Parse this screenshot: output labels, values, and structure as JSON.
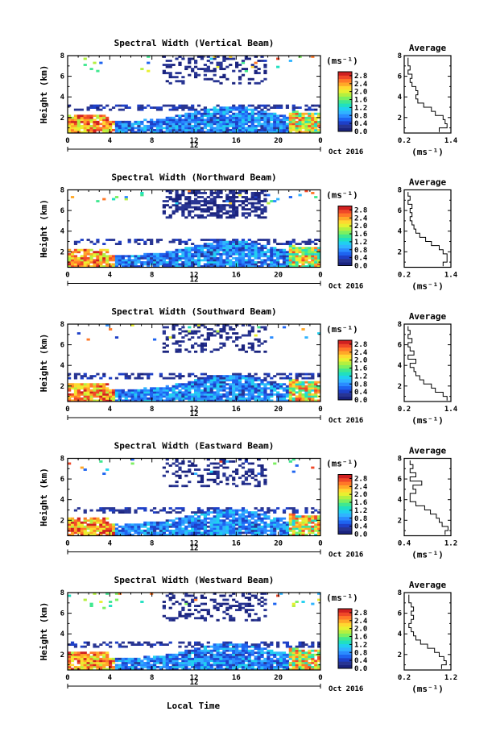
{
  "figure": {
    "xlabel": "Local Time",
    "date_label": "Oct 2016",
    "day_marker": "12",
    "colorbar_unit": "(ms⁻¹)",
    "avg_title": "Average",
    "avg_xunit": "(ms⁻¹)"
  },
  "chart_data": [
    {
      "type": "heatmap",
      "title": "Spectral Width (Vertical Beam)",
      "ylabel": "Height (km)",
      "x_ticks": [
        "0",
        "4",
        "8",
        "12",
        "16",
        "20",
        "0"
      ],
      "xlim": [
        0,
        24
      ],
      "y_ticks": [
        "2",
        "4",
        "6",
        "8"
      ],
      "ylim": [
        0.5,
        8
      ],
      "colorbar": {
        "ticks": [
          "0.0",
          "0.4",
          "0.8",
          "1.2",
          "1.6",
          "2.0",
          "2.4",
          "2.8"
        ],
        "range": [
          0,
          3.0
        ]
      },
      "colors": [
        "#1a237e",
        "#283593",
        "#1e40c8",
        "#1e64f0",
        "#2a8cff",
        "#30b4ff",
        "#20d0f0",
        "#20e0c0",
        "#40e890",
        "#7cf060",
        "#b4f040",
        "#e8f030",
        "#ffd830",
        "#ffa828",
        "#ff7828",
        "#f04828",
        "#d02020"
      ],
      "profile": {
        "xlim": [
          0.2,
          1.4
        ],
        "x_ticks": [
          "0.2",
          "1.4"
        ],
        "y_ticks": [
          "2",
          "4",
          "6",
          "8"
        ],
        "ylim": [
          0.5,
          8
        ],
        "heights": [
          0.8,
          1.2,
          1.6,
          2.0,
          2.4,
          2.8,
          3.2,
          3.6,
          4.0,
          4.4,
          4.8,
          5.2,
          5.6,
          6.0,
          6.4,
          6.8,
          7.2,
          7.6
        ],
        "values": [
          1.1,
          1.3,
          1.25,
          1.2,
          1.0,
          0.9,
          0.7,
          0.55,
          0.5,
          0.55,
          0.5,
          0.4,
          0.35,
          0.4,
          0.3,
          0.35,
          0.3,
          0.3
        ]
      }
    },
    {
      "type": "heatmap",
      "title": "Spectral Width (Northward Beam)",
      "ylabel": "Height (km)",
      "x_ticks": [
        "0",
        "4",
        "8",
        "12",
        "16",
        "20",
        "0"
      ],
      "xlim": [
        0,
        24
      ],
      "y_ticks": [
        "2",
        "4",
        "6",
        "8"
      ],
      "ylim": [
        0.5,
        8
      ],
      "colorbar": {
        "ticks": [
          "0.0",
          "0.4",
          "0.8",
          "1.2",
          "1.6",
          "2.0",
          "2.4",
          "2.8"
        ],
        "range": [
          0,
          3.0
        ]
      },
      "colors": [
        "#1a237e",
        "#283593",
        "#1e40c8",
        "#1e64f0",
        "#2a8cff",
        "#30b4ff",
        "#20d0f0",
        "#20e0c0",
        "#40e890",
        "#7cf060",
        "#b4f040",
        "#e8f030",
        "#ffd830",
        "#ffa828",
        "#ff7828",
        "#f04828",
        "#d02020"
      ],
      "profile": {
        "xlim": [
          0.2,
          1.4
        ],
        "x_ticks": [
          "0.2",
          "1.4"
        ],
        "y_ticks": [
          "2",
          "4",
          "6",
          "8"
        ],
        "ylim": [
          0.5,
          8
        ],
        "heights": [
          0.8,
          1.2,
          1.6,
          2.0,
          2.4,
          2.8,
          3.2,
          3.6,
          4.0,
          4.4,
          4.8,
          5.2,
          5.6,
          6.0,
          6.4,
          6.8,
          7.2,
          7.6
        ],
        "values": [
          1.2,
          1.3,
          1.3,
          1.2,
          1.1,
          0.9,
          0.75,
          0.6,
          0.5,
          0.45,
          0.4,
          0.35,
          0.4,
          0.35,
          0.4,
          0.3,
          0.35,
          0.3
        ]
      }
    },
    {
      "type": "heatmap",
      "title": "Spectral Width (Southward Beam)",
      "ylabel": "Height (km)",
      "x_ticks": [
        "0",
        "4",
        "8",
        "12",
        "16",
        "20",
        "0"
      ],
      "xlim": [
        0,
        24
      ],
      "y_ticks": [
        "2",
        "4",
        "6",
        "8"
      ],
      "ylim": [
        0.5,
        8
      ],
      "colorbar": {
        "ticks": [
          "0.0",
          "0.4",
          "0.8",
          "1.2",
          "1.6",
          "2.0",
          "2.4",
          "2.8"
        ],
        "range": [
          0,
          3.0
        ]
      },
      "colors": [
        "#1a237e",
        "#283593",
        "#1e40c8",
        "#1e64f0",
        "#2a8cff",
        "#30b4ff",
        "#20d0f0",
        "#20e0c0",
        "#40e890",
        "#7cf060",
        "#b4f040",
        "#e8f030",
        "#ffd830",
        "#ffa828",
        "#ff7828",
        "#f04828",
        "#d02020"
      ],
      "profile": {
        "xlim": [
          0.2,
          1.4
        ],
        "x_ticks": [
          "0.2",
          "1.4"
        ],
        "y_ticks": [
          "2",
          "4",
          "6",
          "8"
        ],
        "ylim": [
          0.5,
          8
        ],
        "heights": [
          0.8,
          1.2,
          1.6,
          2.0,
          2.4,
          2.8,
          3.2,
          3.6,
          4.0,
          4.4,
          4.8,
          5.2,
          5.6,
          6.0,
          6.4,
          6.8,
          7.2,
          7.6
        ],
        "values": [
          1.3,
          1.2,
          1.0,
          0.9,
          0.7,
          0.6,
          0.5,
          0.45,
          0.35,
          0.5,
          0.3,
          0.45,
          0.35,
          0.3,
          0.4,
          0.3,
          0.35,
          0.3
        ]
      }
    },
    {
      "type": "heatmap",
      "title": "Spectral Width (Eastward Beam)",
      "ylabel": "Height (km)",
      "x_ticks": [
        "0",
        "4",
        "8",
        "12",
        "16",
        "20",
        "0"
      ],
      "xlim": [
        0,
        24
      ],
      "y_ticks": [
        "2",
        "4",
        "6",
        "8"
      ],
      "ylim": [
        0.5,
        8
      ],
      "colorbar": {
        "ticks": [
          "0.0",
          "0.4",
          "0.8",
          "1.2",
          "1.6",
          "2.0",
          "2.4",
          "2.8"
        ],
        "range": [
          0,
          3.0
        ]
      },
      "colors": [
        "#1a237e",
        "#283593",
        "#1e40c8",
        "#1e64f0",
        "#2a8cff",
        "#30b4ff",
        "#20d0f0",
        "#20e0c0",
        "#40e890",
        "#7cf060",
        "#b4f040",
        "#e8f030",
        "#ffd830",
        "#ffa828",
        "#ff7828",
        "#f04828",
        "#d02020"
      ],
      "profile": {
        "xlim": [
          0.4,
          1.2
        ],
        "x_ticks": [
          "0.4",
          "1.2"
        ],
        "y_ticks": [
          "2",
          "4",
          "6",
          "8"
        ],
        "ylim": [
          0.5,
          8
        ],
        "heights": [
          0.8,
          1.2,
          1.6,
          2.0,
          2.4,
          2.8,
          3.2,
          3.6,
          4.0,
          4.4,
          4.8,
          5.2,
          5.6,
          6.0,
          6.4,
          6.8,
          7.2,
          7.6
        ],
        "values": [
          1.1,
          1.15,
          1.05,
          1.0,
          0.95,
          0.85,
          0.75,
          0.6,
          0.5,
          0.5,
          0.6,
          0.55,
          0.7,
          0.5,
          0.6,
          0.5,
          0.55,
          0.5
        ]
      }
    },
    {
      "type": "heatmap",
      "title": "Spectral Width (Westward Beam)",
      "ylabel": "Height (km)",
      "x_ticks": [
        "0",
        "4",
        "8",
        "12",
        "16",
        "20",
        "0"
      ],
      "xlim": [
        0,
        24
      ],
      "y_ticks": [
        "2",
        "4",
        "6",
        "8"
      ],
      "ylim": [
        0.5,
        8
      ],
      "colorbar": {
        "ticks": [
          "0.0",
          "0.4",
          "0.8",
          "1.2",
          "1.6",
          "2.0",
          "2.4",
          "2.8"
        ],
        "range": [
          0,
          3.0
        ]
      },
      "colors": [
        "#1a237e",
        "#283593",
        "#1e40c8",
        "#1e64f0",
        "#2a8cff",
        "#30b4ff",
        "#20d0f0",
        "#20e0c0",
        "#40e890",
        "#7cf060",
        "#b4f040",
        "#e8f030",
        "#ffd830",
        "#ffa828",
        "#ff7828",
        "#f04828",
        "#d02020"
      ],
      "profile": {
        "xlim": [
          0.2,
          1.2
        ],
        "x_ticks": [
          "0.2",
          "1.2"
        ],
        "y_ticks": [
          "2",
          "4",
          "6",
          "8"
        ],
        "ylim": [
          0.5,
          8
        ],
        "heights": [
          0.8,
          1.2,
          1.6,
          2.0,
          2.4,
          2.8,
          3.2,
          3.6,
          4.0,
          4.4,
          4.8,
          5.2,
          5.6,
          6.0,
          6.4,
          6.8,
          7.2,
          7.6
        ],
        "values": [
          1.0,
          1.1,
          1.05,
          0.95,
          0.85,
          0.7,
          0.55,
          0.45,
          0.4,
          0.35,
          0.3,
          0.35,
          0.4,
          0.35,
          0.4,
          0.35,
          0.3,
          0.3
        ]
      }
    }
  ]
}
